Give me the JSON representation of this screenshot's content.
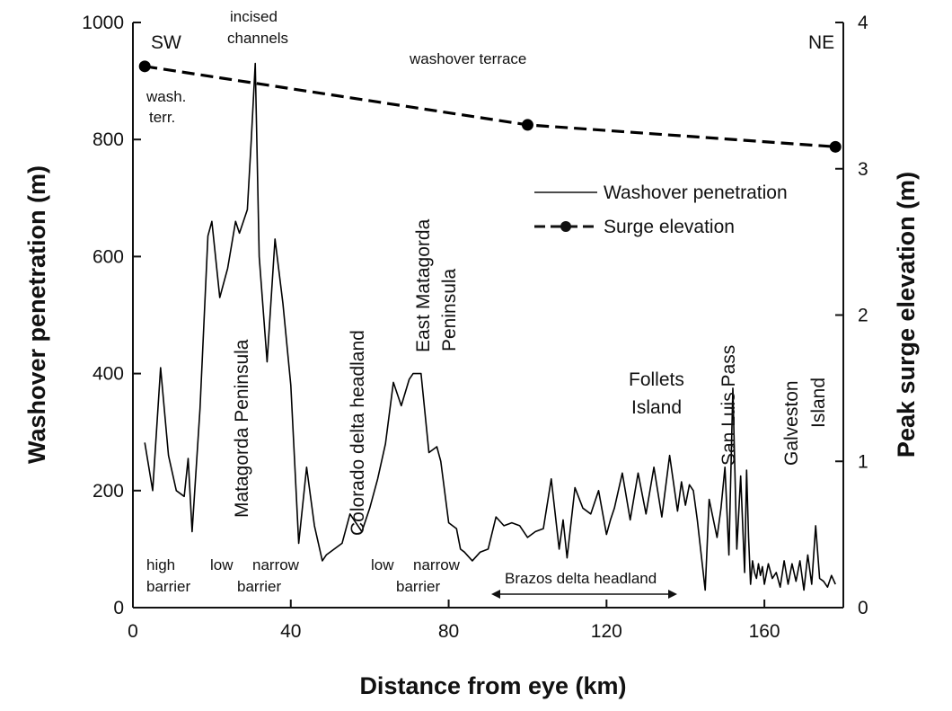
{
  "chart_data": {
    "type": "line",
    "xlabel": "Distance from eye (km)",
    "ylabel_left": "Washover penetration (m)",
    "ylabel_right": "Peak surge elevation (m)",
    "xlim": [
      0,
      180
    ],
    "ylim_left": [
      0,
      1000
    ],
    "ylim_right": [
      0,
      4
    ],
    "xticks": [
      0,
      40,
      80,
      120,
      160
    ],
    "yticks_left": [
      0,
      200,
      400,
      600,
      800,
      1000
    ],
    "yticks_right": [
      0,
      1,
      2,
      3,
      4
    ],
    "legend": {
      "position": "center-right",
      "entries": [
        "Washover penetration",
        "Surge elevation"
      ]
    },
    "series": [
      {
        "name": "Washover penetration",
        "axis": "left",
        "style": "solid",
        "x": [
          3,
          5,
          7,
          9,
          11,
          13,
          14,
          15,
          17,
          19,
          20,
          22,
          24,
          26,
          27,
          29,
          30,
          31,
          32,
          34,
          36,
          38,
          40,
          42,
          44,
          46,
          48,
          49,
          51,
          53,
          55,
          58,
          59,
          60,
          62,
          64,
          66,
          68,
          70,
          71,
          73,
          75,
          77,
          78,
          80,
          82,
          83,
          84,
          86,
          88,
          90,
          92,
          94,
          96,
          98,
          100,
          102,
          104,
          106,
          108,
          109,
          110,
          112,
          114,
          116,
          118,
          120,
          121,
          122,
          124,
          126,
          128,
          130,
          132,
          134,
          136,
          138,
          139,
          140,
          141,
          142,
          143,
          145,
          146,
          148,
          149,
          150,
          151,
          152,
          153,
          154,
          155,
          155.5,
          156,
          156.5,
          157,
          157.5,
          158,
          158.5,
          159,
          159.5,
          160,
          161,
          162,
          163,
          164,
          165,
          166,
          167,
          168,
          169,
          170,
          171,
          172,
          173,
          174,
          175,
          176,
          177,
          178
        ],
        "values": [
          282,
          200,
          410,
          260,
          200,
          190,
          255,
          130,
          340,
          635,
          660,
          530,
          580,
          660,
          640,
          680,
          800,
          930,
          600,
          420,
          630,
          520,
          380,
          110,
          240,
          140,
          80,
          90,
          100,
          110,
          160,
          130,
          150,
          170,
          220,
          280,
          385,
          345,
          390,
          400,
          400,
          265,
          275,
          250,
          145,
          135,
          100,
          95,
          80,
          95,
          100,
          155,
          140,
          145,
          140,
          120,
          130,
          135,
          220,
          100,
          150,
          85,
          205,
          170,
          160,
          200,
          125,
          150,
          170,
          230,
          150,
          230,
          160,
          240,
          155,
          260,
          165,
          215,
          175,
          210,
          200,
          150,
          30,
          185,
          120,
          170,
          240,
          90,
          375,
          100,
          225,
          60,
          235,
          120,
          40,
          80,
          60,
          50,
          75,
          55,
          70,
          40,
          75,
          50,
          60,
          35,
          80,
          40,
          75,
          45,
          80,
          30,
          90,
          40,
          140,
          50,
          45,
          35,
          55,
          40
        ],
        "color": "#000000"
      },
      {
        "name": "Surge elevation",
        "axis": "right",
        "style": "dashed",
        "x": [
          3,
          100,
          178
        ],
        "values": [
          3.7,
          3.3,
          3.15
        ],
        "color": "#000000"
      }
    ],
    "annotations": {
      "sw": "SW",
      "ne": "NE",
      "incised_1": "incised",
      "incised_2": "channels",
      "washover_terrace": "washover terrace",
      "wash": "wash.",
      "terr": "terr.",
      "matagorda": "Matagorda Peninsula",
      "colorado": "Colorado delta headland",
      "east_mat_1": "East Matagorda",
      "east_mat_2": "Peninsula",
      "follets_1": "Follets",
      "follets_2": "Island",
      "san_luis": "San Luis Pass",
      "galveston_1": "Galveston",
      "galveston_2": "Island",
      "high": "high",
      "barrier_a": "barrier",
      "low_a": "low",
      "narrow_a": "narrow",
      "barrier_b": "barrier",
      "low_b": "low",
      "narrow_b": "narrow",
      "barrier_c": "barrier",
      "brazos": "Brazos delta headland"
    }
  }
}
